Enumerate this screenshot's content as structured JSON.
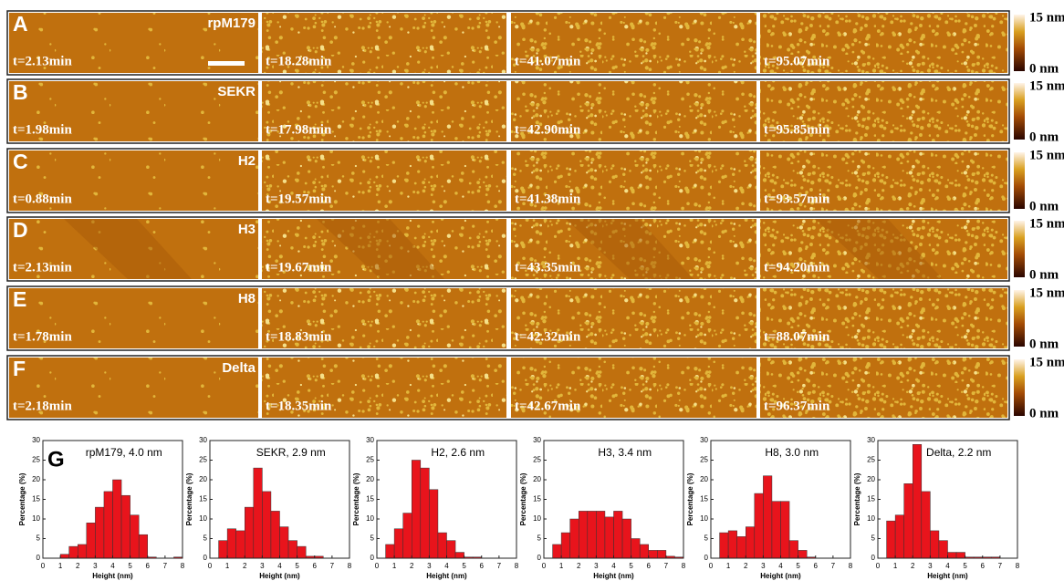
{
  "figure": {
    "rows": [
      {
        "label": "A",
        "sample": "rpM179",
        "times": [
          "t=2.13min",
          "t=18.28min",
          "t=41.07min",
          "t=95.07min"
        ],
        "scale_max": "15 nm",
        "scale_min": "0 nm"
      },
      {
        "label": "B",
        "sample": "SEKR",
        "times": [
          "t=1.98min",
          "t=17.98min",
          "t=42.90min",
          "t=95.85min"
        ],
        "scale_max": "15 nm",
        "scale_min": "0 nm"
      },
      {
        "label": "C",
        "sample": "H2",
        "times": [
          "t=0.88min",
          "t=19.57min",
          "t=41.38min",
          "t=93.57min"
        ],
        "scale_max": "15 nm",
        "scale_min": "0 nm"
      },
      {
        "label": "D",
        "sample": "H3",
        "times": [
          "t=2.13min",
          "t=19.67min",
          "t=43.35min",
          "t=94.20min"
        ],
        "scale_max": "15 nm",
        "scale_min": "0 nm"
      },
      {
        "label": "E",
        "sample": "H8",
        "times": [
          "t=1.78min",
          "t=18.83min",
          "t=42.32min",
          "t=88.07min"
        ],
        "scale_max": "15 nm",
        "scale_min": "0 nm"
      },
      {
        "label": "F",
        "sample": "Delta",
        "times": [
          "t=2.18min",
          "t=18.35min",
          "t=42.67min",
          "t=96.37min"
        ],
        "scale_max": "15 nm",
        "scale_min": "0 nm"
      }
    ],
    "panel_g_label": "G"
  },
  "chart_data": [
    {
      "type": "histogram",
      "title": "rpM179, 4.0 nm",
      "xlabel": "Height (nm)",
      "ylabel": "Percentage (%)",
      "color": "#e8141c",
      "bins": [
        1,
        1.5,
        2,
        2.5,
        3,
        3.5,
        4,
        4.5,
        5,
        5.5,
        6,
        6.5,
        7,
        7.5,
        8
      ],
      "values": [
        1,
        3,
        3.5,
        9,
        13,
        17,
        20,
        16,
        11,
        6,
        0.3,
        0,
        0,
        0.3
      ],
      "xlim": [
        0,
        8
      ],
      "ylim": [
        0,
        30
      ],
      "xticks": [
        0,
        1,
        2,
        3,
        4,
        5,
        6,
        7,
        8
      ],
      "yticks": [
        0,
        5,
        10,
        15,
        20,
        25,
        30
      ]
    },
    {
      "type": "histogram",
      "title": "SEKR, 2.9 nm",
      "xlabel": "Height (nm)",
      "ylabel": "Percentage (%)",
      "color": "#e8141c",
      "bins": [
        0.5,
        1,
        1.5,
        2,
        2.5,
        3,
        3.5,
        4,
        4.5,
        5,
        5.5,
        6,
        6.5
      ],
      "values": [
        4.5,
        7.5,
        7,
        13,
        23,
        17,
        12,
        8,
        4.5,
        3,
        0.5,
        0.5
      ],
      "xlim": [
        0,
        8
      ],
      "ylim": [
        0,
        30
      ],
      "xticks": [
        0,
        1,
        2,
        3,
        4,
        5,
        6,
        7,
        8
      ],
      "yticks": [
        0,
        5,
        10,
        15,
        20,
        25,
        30
      ]
    },
    {
      "type": "histogram",
      "title": "H2, 2.6 nm",
      "xlabel": "Height (nm)",
      "ylabel": "Percentage (%)",
      "color": "#e8141c",
      "bins": [
        0.5,
        1,
        1.5,
        2,
        2.5,
        3,
        3.5,
        4,
        4.5,
        5,
        5.5,
        6
      ],
      "values": [
        3.5,
        7.5,
        11.5,
        25,
        23,
        17.5,
        6.5,
        4.5,
        1.5,
        0.3,
        0.3
      ],
      "xlim": [
        0,
        8
      ],
      "ylim": [
        0,
        30
      ],
      "xticks": [
        0,
        1,
        2,
        3,
        4,
        5,
        6,
        7,
        8
      ],
      "yticks": [
        0,
        5,
        10,
        15,
        20,
        25,
        30
      ]
    },
    {
      "type": "histogram",
      "title": "H3, 3.4 nm",
      "xlabel": "Height (nm)",
      "ylabel": "Percentage (%)",
      "color": "#e8141c",
      "bins": [
        0.5,
        1,
        1.5,
        2,
        2.5,
        3,
        3.5,
        4,
        4.5,
        5,
        5.5,
        6,
        6.5,
        7,
        7.5,
        8
      ],
      "values": [
        3.5,
        6.5,
        10,
        12,
        12,
        12,
        10.5,
        12,
        10,
        5,
        3.5,
        2,
        2,
        0.5,
        0.3
      ],
      "xlim": [
        0,
        8
      ],
      "ylim": [
        0,
        30
      ],
      "xticks": [
        0,
        1,
        2,
        3,
        4,
        5,
        6,
        7,
        8
      ],
      "yticks": [
        0,
        5,
        10,
        15,
        20,
        25,
        30
      ]
    },
    {
      "type": "histogram",
      "title": "H8, 3.0 nm",
      "xlabel": "Height (nm)",
      "ylabel": "Percentage (%)",
      "color": "#e8141c",
      "bins": [
        0.5,
        1,
        1.5,
        2,
        2.5,
        3,
        3.5,
        4,
        4.5,
        5,
        5.5,
        6
      ],
      "values": [
        6.5,
        7,
        5.5,
        8,
        16.5,
        21,
        14.5,
        14.5,
        4.5,
        2,
        0.3
      ],
      "xlim": [
        0,
        8
      ],
      "ylim": [
        0,
        30
      ],
      "xticks": [
        0,
        1,
        2,
        3,
        4,
        5,
        6,
        7,
        8
      ],
      "yticks": [
        0,
        5,
        10,
        15,
        20,
        25,
        30
      ]
    },
    {
      "type": "histogram",
      "title": "Delta, 2.2 nm",
      "xlabel": "Height (nm)",
      "ylabel": "Percentage (%)",
      "color": "#e8141c",
      "bins": [
        0.5,
        1,
        1.5,
        2,
        2.5,
        3,
        3.5,
        4,
        4.5,
        5,
        5.5,
        6,
        6.5,
        7
      ],
      "values": [
        9.5,
        11,
        19,
        29,
        17,
        7,
        4.5,
        1.5,
        1.5,
        0.3,
        0.3,
        0.3,
        0.3
      ],
      "xlim": [
        0,
        8
      ],
      "ylim": [
        0,
        30
      ],
      "xticks": [
        0,
        1,
        2,
        3,
        4,
        5,
        6,
        7,
        8
      ],
      "yticks": [
        0,
        5,
        10,
        15,
        20,
        25,
        30
      ]
    }
  ]
}
